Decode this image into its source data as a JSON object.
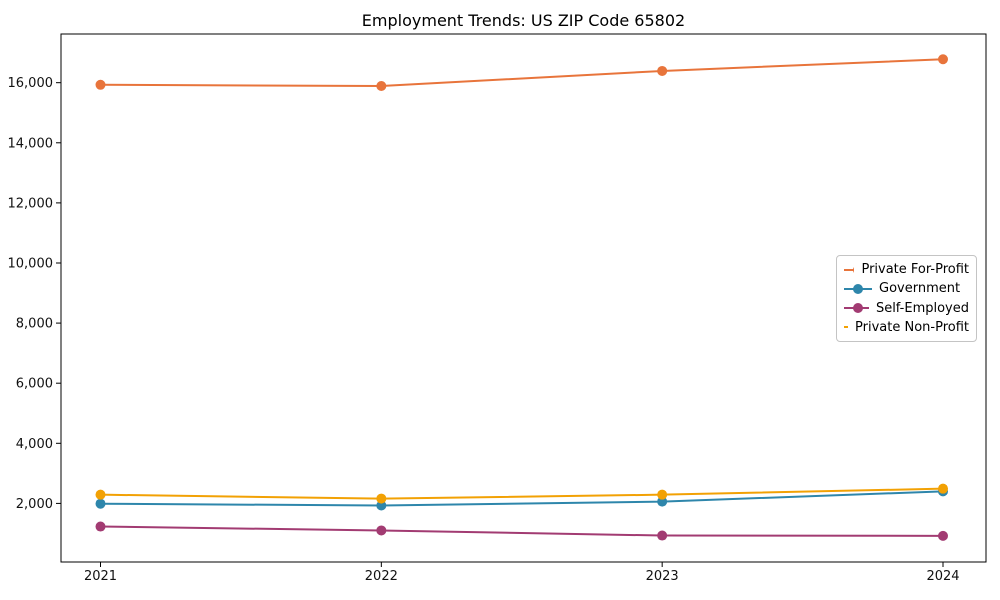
{
  "chart_data": {
    "type": "line",
    "title": "Employment Trends: US ZIP Code 65802",
    "xlabel": "",
    "ylabel": "",
    "grid": false,
    "legend_position": "right-middle",
    "background_color": "#ffffff",
    "axis_color": "#000000",
    "marker": "circle",
    "x_labels": [
      "2021",
      "2022",
      "2023",
      "2024"
    ],
    "ylim": [
      50,
      17620
    ],
    "y_ticks": [
      {
        "value": 2000,
        "label": "2,000"
      },
      {
        "value": 4000,
        "label": "4,000"
      },
      {
        "value": 6000,
        "label": "6,000"
      },
      {
        "value": 8000,
        "label": "8,000"
      },
      {
        "value": 10000,
        "label": "10,000"
      },
      {
        "value": 12000,
        "label": "12,000"
      },
      {
        "value": 14000,
        "label": "14,000"
      },
      {
        "value": 16000,
        "label": "16,000"
      }
    ],
    "series": [
      {
        "name": "Private For-Profit",
        "color": "#E8743B",
        "values": [
          15930,
          15890,
          16390,
          16780
        ]
      },
      {
        "name": "Government",
        "color": "#2E86AB",
        "values": [
          1990,
          1930,
          2060,
          2400
        ]
      },
      {
        "name": "Self-Employed",
        "color": "#A23B72",
        "values": [
          1230,
          1100,
          930,
          920
        ]
      },
      {
        "name": "Private Non-Profit",
        "color": "#F2A104",
        "values": [
          2290,
          2160,
          2290,
          2490
        ]
      }
    ]
  }
}
